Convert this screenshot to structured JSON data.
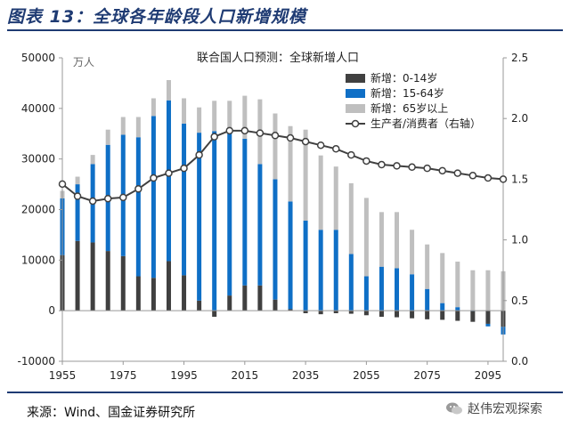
{
  "header": {
    "title": "图表 13：全球各年龄段人口新增规模"
  },
  "footer": {
    "source": "来源：Wind、国金证券研究所",
    "brand": "赵伟宏观探索"
  },
  "chart_data": {
    "type": "bar",
    "title": "联合国人口预测：全球新增人口",
    "unit_label": "万人",
    "x": [
      1955,
      1960,
      1965,
      1970,
      1975,
      1980,
      1985,
      1990,
      1995,
      2000,
      2005,
      2010,
      2015,
      2020,
      2025,
      2030,
      2035,
      2040,
      2045,
      2050,
      2055,
      2060,
      2065,
      2070,
      2075,
      2080,
      2085,
      2090,
      2095,
      2100
    ],
    "x_ticks": [
      "1955",
      "1975",
      "1995",
      "2015",
      "2035",
      "2055",
      "2075",
      "2095"
    ],
    "y_left_range": [
      -10000,
      50000
    ],
    "y_left_ticks": [
      "-10000",
      "0",
      "10000",
      "20000",
      "30000",
      "40000",
      "50000"
    ],
    "y_right_range": [
      0,
      2.5
    ],
    "y_right_ticks": [
      "0.0",
      "0.5",
      "1.0",
      "1.5",
      "2.0",
      "2.5"
    ],
    "series": [
      {
        "name": "新增：0-14岁",
        "color": "#404040",
        "values": [
          11000,
          13800,
          13500,
          11800,
          10800,
          6800,
          6500,
          9800,
          7000,
          2000,
          -1200,
          3000,
          5000,
          5000,
          2200,
          300,
          -500,
          -700,
          -500,
          -600,
          -900,
          -1200,
          -1300,
          -1500,
          -1700,
          -1800,
          -2000,
          -2200,
          -2600,
          -3200
        ]
      },
      {
        "name": "新增：15-64岁",
        "color": "#0f6fc6",
        "values": [
          11200,
          11200,
          15500,
          21000,
          24000,
          27500,
          32000,
          31800,
          30000,
          33200,
          35500,
          32500,
          29000,
          24000,
          23800,
          21300,
          17800,
          16000,
          16000,
          11200,
          6800,
          8700,
          8400,
          7200,
          4300,
          1500,
          700,
          0,
          -500,
          -1500
        ]
      },
      {
        "name": "新增：65岁以上",
        "color": "#bfbfbf",
        "values": [
          1500,
          1500,
          1800,
          3000,
          3500,
          4000,
          3500,
          4000,
          5000,
          5000,
          6000,
          6000,
          8500,
          12800,
          13000,
          14900,
          18000,
          14700,
          12500,
          14000,
          15500,
          10800,
          11100,
          8800,
          8800,
          9900,
          9000,
          8000,
          8000,
          7800
        ]
      },
      {
        "name": "生产者/消费者（右轴）",
        "color": "#404040",
        "type": "line",
        "axis": "right",
        "values": [
          1.46,
          1.36,
          1.32,
          1.34,
          1.35,
          1.42,
          1.51,
          1.55,
          1.59,
          1.7,
          1.85,
          1.9,
          1.9,
          1.88,
          1.86,
          1.84,
          1.81,
          1.78,
          1.75,
          1.7,
          1.65,
          1.62,
          1.61,
          1.6,
          1.59,
          1.57,
          1.55,
          1.53,
          1.51,
          1.5
        ]
      }
    ],
    "legend_position": "top-right",
    "grid": false
  }
}
